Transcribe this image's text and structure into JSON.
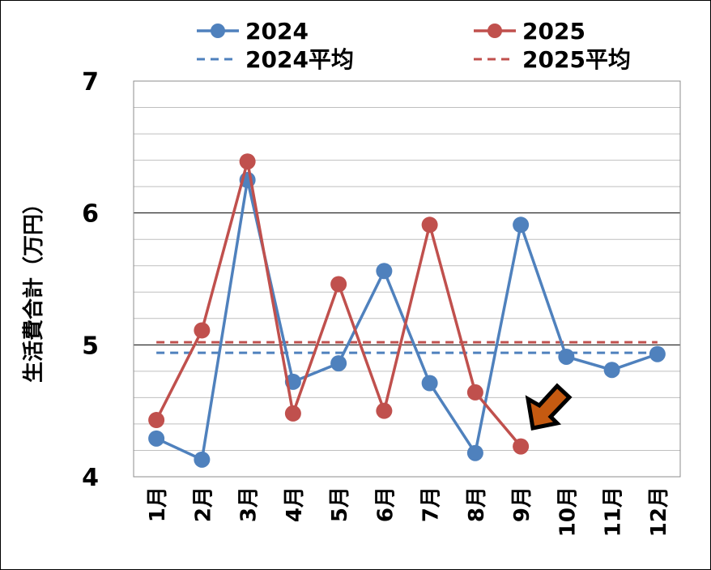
{
  "chart_data": {
    "type": "line",
    "title": "",
    "xlabel": "",
    "ylabel": "生活費合計（万円）",
    "ylim": [
      4,
      7
    ],
    "yticks": [
      "4",
      "5",
      "6",
      "7"
    ],
    "minor_grid_step": 0.2,
    "grid": true,
    "legend_position": "top",
    "categories": [
      "1月",
      "2月",
      "3月",
      "4月",
      "5月",
      "6月",
      "7月",
      "8月",
      "9月",
      "10月",
      "11月",
      "12月"
    ],
    "series": [
      {
        "name": "2024",
        "color": "#4F81BD",
        "style": "line-marker",
        "values": [
          4.29,
          4.13,
          6.25,
          4.72,
          4.86,
          5.56,
          4.71,
          4.18,
          5.91,
          4.91,
          4.81,
          4.93
        ]
      },
      {
        "name": "2025",
        "color": "#C0504D",
        "style": "line-marker",
        "values": [
          4.43,
          5.11,
          6.39,
          4.48,
          5.46,
          4.5,
          5.91,
          4.64,
          4.23,
          null,
          null,
          null
        ]
      },
      {
        "name": "2024平均",
        "color": "#4F81BD",
        "style": "dashed",
        "value": 4.94
      },
      {
        "name": "2025平均",
        "color": "#C0504D",
        "style": "dashed",
        "value": 5.02
      }
    ],
    "annotations": [
      {
        "type": "arrow",
        "color": "#C55A11",
        "points_to": "9月 2025"
      }
    ]
  }
}
